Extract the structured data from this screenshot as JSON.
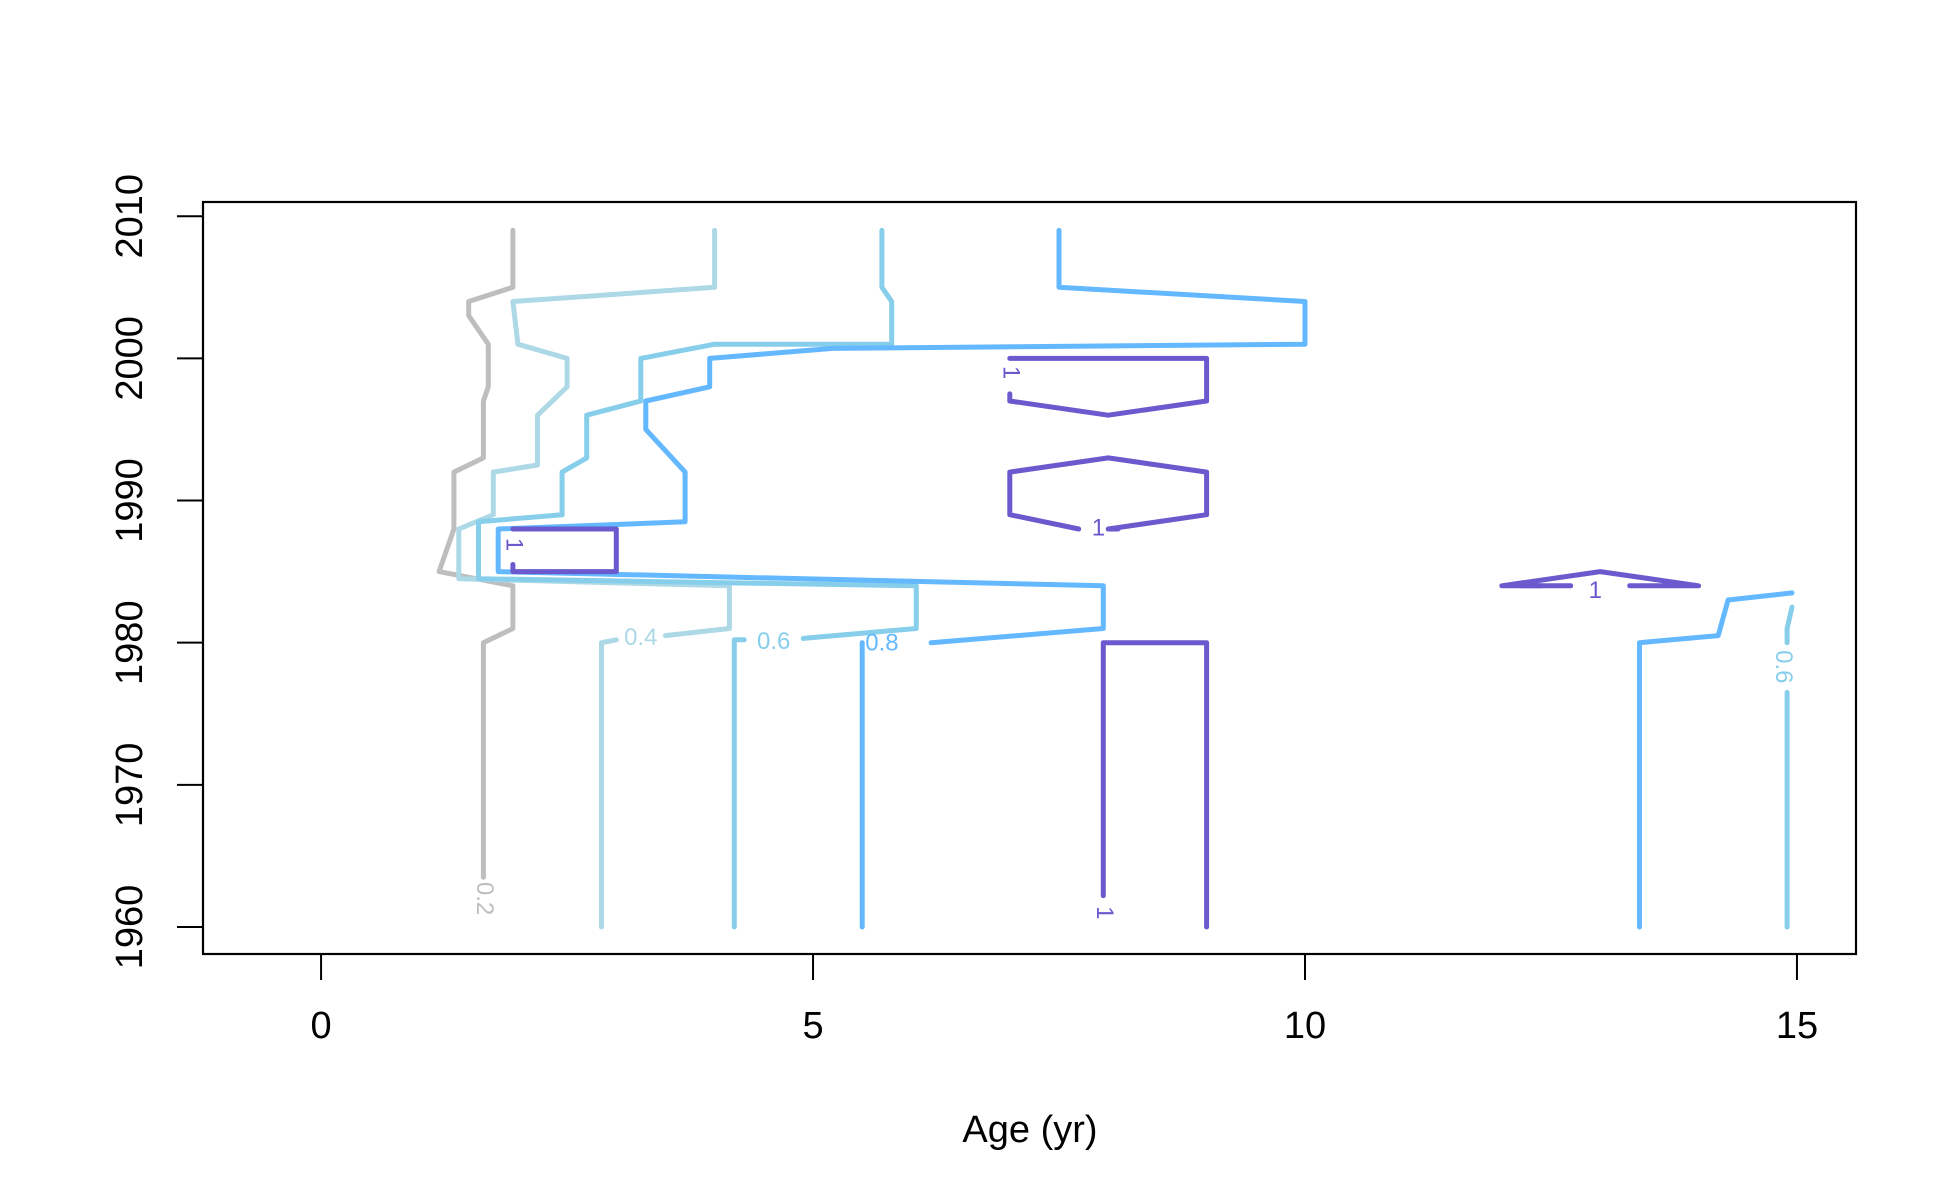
{
  "chart_data": {
    "type": "contour",
    "title": "",
    "xlabel": "Age (yr)",
    "ylabel": "",
    "xlim": [
      -1.2,
      15.6
    ],
    "ylim": [
      1958.1,
      2011.0
    ],
    "x_ticks": [
      0,
      5,
      10,
      15
    ],
    "x_tick_labels": [
      "0",
      "5",
      "10",
      "15"
    ],
    "y_ticks": [
      1960,
      1970,
      1980,
      1990,
      2000,
      2010
    ],
    "y_tick_labels": [
      "1960",
      "1970",
      "1980",
      "1990",
      "2000",
      "2010"
    ],
    "grid": false,
    "legend": "none",
    "series": [
      {
        "level": 0.2,
        "color": "#bebebe",
        "labels": [
          {
            "text": "0.2",
            "x": 1.65,
            "y": 1962.0,
            "rotation": 90
          }
        ],
        "paths": [
          [
            [
              1.65,
              1963.5
            ],
            [
              1.65,
              1980
            ],
            [
              1.95,
              1981
            ],
            [
              1.95,
              1984
            ],
            [
              1.2,
              1985
            ],
            [
              1.35,
              1988
            ],
            [
              1.35,
              1992
            ],
            [
              1.65,
              1993
            ],
            [
              1.65,
              1997
            ],
            [
              1.7,
              1998
            ],
            [
              1.7,
              2001
            ],
            [
              1.5,
              2003
            ],
            [
              1.5,
              2004
            ],
            [
              1.95,
              2005
            ],
            [
              1.95,
              2009
            ]
          ]
        ]
      },
      {
        "level": 0.4,
        "color": "#add8e6",
        "labels": [
          {
            "text": "0.4",
            "x": 3.25,
            "y": 1980.3,
            "rotation": 0
          }
        ],
        "paths": [
          [
            [
              2.85,
              1960
            ],
            [
              2.85,
              1980
            ],
            [
              3.0,
              1980.2
            ]
          ],
          [
            [
              3.5,
              1980.5
            ],
            [
              4.15,
              1981
            ],
            [
              4.15,
              1984
            ],
            [
              1.4,
              1984.5
            ],
            [
              1.4,
              1988
            ],
            [
              1.75,
              1989
            ],
            [
              1.75,
              1992
            ],
            [
              2.2,
              1992.5
            ],
            [
              2.2,
              1996
            ],
            [
              2.5,
              1998
            ],
            [
              2.5,
              2000
            ],
            [
              2.0,
              2001
            ],
            [
              1.95,
              2004
            ],
            [
              4.0,
              2005
            ],
            [
              4.0,
              2009
            ]
          ]
        ]
      },
      {
        "level": 0.6,
        "color": "#87ceeb",
        "labels": [
          {
            "text": "0.6",
            "x": 4.6,
            "y": 1980.0,
            "rotation": 0
          },
          {
            "text": "0.6",
            "x": 14.85,
            "y": 1978.3,
            "rotation": 90
          }
        ],
        "paths": [
          [
            [
              4.2,
              1960
            ],
            [
              4.2,
              1980.2
            ],
            [
              4.3,
              1980.2
            ]
          ],
          [
            [
              4.9,
              1980.3
            ],
            [
              6.05,
              1981
            ],
            [
              6.05,
              1984
            ],
            [
              1.6,
              1984.5
            ],
            [
              1.6,
              1988.5
            ],
            [
              2.45,
              1989
            ],
            [
              2.45,
              1992
            ],
            [
              2.7,
              1993
            ],
            [
              2.7,
              1996
            ],
            [
              3.25,
              1997
            ],
            [
              3.25,
              2000
            ],
            [
              4.0,
              2001
            ],
            [
              5.8,
              2001
            ],
            [
              5.8,
              2004
            ],
            [
              5.7,
              2005
            ],
            [
              5.7,
              2009
            ]
          ],
          [
            [
              14.9,
              1960
            ],
            [
              14.9,
              1976.5
            ]
          ],
          [
            [
              14.9,
              1980
            ],
            [
              14.9,
              1981
            ],
            [
              14.95,
              1982.5
            ]
          ]
        ]
      },
      {
        "level": 0.8,
        "color": "#63b8ff",
        "labels": [
          {
            "text": "0.8",
            "x": 5.7,
            "y": 1979.9,
            "rotation": 0
          }
        ],
        "paths": [
          [
            [
              5.5,
              1960
            ],
            [
              5.5,
              1980
            ],
            [
              5.5,
              1980
            ]
          ],
          [
            [
              6.2,
              1980
            ],
            [
              7.95,
              1981
            ],
            [
              7.95,
              1984
            ],
            [
              1.8,
              1985
            ],
            [
              1.8,
              1988
            ],
            [
              3.7,
              1988.5
            ],
            [
              3.7,
              1992
            ],
            [
              3.3,
              1995
            ],
            [
              3.3,
              1997
            ],
            [
              3.95,
              1998
            ],
            [
              3.95,
              2000
            ],
            [
              5.2,
              2000.7
            ],
            [
              10.0,
              2001
            ],
            [
              10.0,
              2004
            ],
            [
              7.5,
              2005
            ],
            [
              7.5,
              2009
            ]
          ],
          [
            [
              13.4,
              1960
            ],
            [
              13.4,
              1980
            ],
            [
              14.2,
              1980.5
            ],
            [
              14.3,
              1983
            ],
            [
              14.95,
              1983.5
            ]
          ]
        ]
      },
      {
        "level": 1,
        "color": "#6a5acd",
        "labels": [
          {
            "text": "1",
            "x": 1.95,
            "y": 1986.9,
            "rotation": 90
          },
          {
            "text": "1",
            "x": 7.0,
            "y": 1999.0,
            "rotation": 90
          },
          {
            "text": "1",
            "x": 7.9,
            "y": 1988.0,
            "rotation": 0
          },
          {
            "text": "1",
            "x": 12.95,
            "y": 1983.6,
            "rotation": 0
          },
          {
            "text": "1",
            "x": 7.95,
            "y": 1961.0,
            "rotation": 90
          }
        ],
        "paths": [
          [
            [
              1.95,
              1985
            ],
            [
              1.95,
              1985.5
            ],
            [
              1.95,
              1985
            ],
            [
              3.0,
              1985
            ],
            [
              3.0,
              1988
            ],
            [
              1.95,
              1988
            ]
          ],
          [
            [
              7.0,
              1997.5
            ],
            [
              7.0,
              1997
            ],
            [
              8.0,
              1996
            ],
            [
              9.0,
              1997
            ],
            [
              9.0,
              2000
            ],
            [
              7.0,
              2000
            ]
          ],
          [
            [
              7.7,
              1988
            ],
            [
              7.0,
              1989
            ],
            [
              7.0,
              1992
            ],
            [
              8.0,
              1993
            ],
            [
              9.0,
              1992
            ],
            [
              9.0,
              1989
            ],
            [
              8.0,
              1988
            ],
            [
              8.1,
              1988
            ]
          ],
          [
            [
              12.4,
              1984
            ],
            [
              12.0,
              1984
            ],
            [
              13.0,
              1985
            ],
            [
              14.0,
              1984
            ],
            [
              13.3,
              1984
            ]
          ],
          [
            [
              12.2,
              1984
            ],
            [
              12.7,
              1984
            ]
          ],
          [
            [
              7.95,
              1962.2
            ],
            [
              7.95,
              1980
            ],
            [
              9.0,
              1980
            ],
            [
              9.0,
              1960
            ]
          ]
        ]
      }
    ]
  }
}
